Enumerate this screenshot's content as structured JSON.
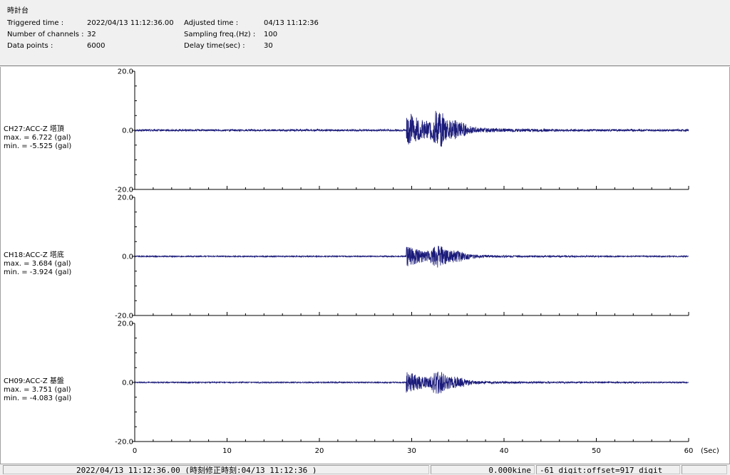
{
  "header": {
    "station": "時計台",
    "triggered_label": "Triggered time :",
    "triggered_value": "2022/04/13 11:12:36.00",
    "channels_label": "Number of channels :",
    "channels_value": "32",
    "datapoints_label": "Data points :",
    "datapoints_value": "6000",
    "adjusted_label": "Adjusted time :",
    "adjusted_value": "04/13 11:12:36",
    "sampling_label": "Sampling freq.(Hz) :",
    "sampling_value": "100",
    "delay_label": "Delay time(sec) :",
    "delay_value": "30"
  },
  "chart_data": {
    "type": "line",
    "x_unit": "(Sec)",
    "xlim": [
      0,
      60
    ],
    "x_ticks": [
      "0",
      "10",
      "20",
      "30",
      "40",
      "50",
      "60"
    ],
    "ylim": [
      -20,
      20
    ],
    "y_ticks": [
      "20.0",
      "0.0",
      "-20.0"
    ],
    "line_color": "#1a1a7a",
    "series": [
      {
        "channel": "CH27:ACC-Z 塔頂",
        "max_label": "max. = 6.722 (gal)",
        "min_label": "min. = -5.525 (gal)",
        "max": 6.722,
        "min": -5.525
      },
      {
        "channel": "CH18:ACC-Z 塔底",
        "max_label": "max. = 3.684 (gal)",
        "min_label": "min. = -3.924 (gal)",
        "max": 3.684,
        "min": -3.924
      },
      {
        "channel": "CH09:ACC-Z 基盤",
        "max_label": "max. = 3.751 (gal)",
        "min_label": "min. = -4.083 (gal)",
        "max": 3.751,
        "min": -4.083
      }
    ]
  },
  "status": {
    "time": "2022/04/13 11:12:36.00  (時刻修正時刻:04/13 11:12:36  )",
    "velocity": "0.000kine",
    "digit": "-61 digit:offset=917 digit"
  }
}
